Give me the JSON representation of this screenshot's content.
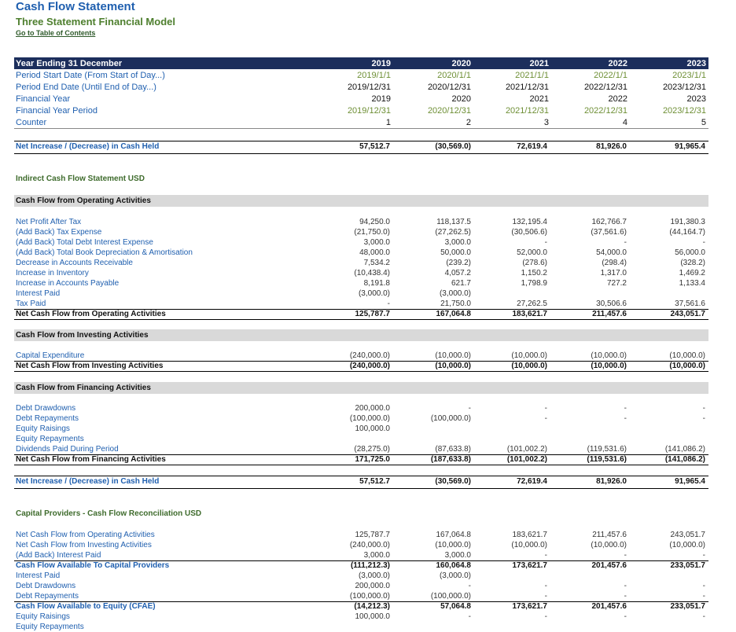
{
  "title": "Cash Flow Statement",
  "subtitle": "Three Statement Financial Model",
  "toc_link": "Go to Table of Contents",
  "header": {
    "rows": [
      {
        "label": "Year Ending 31 December",
        "values": [
          "2019",
          "2020",
          "2021",
          "2022",
          "2023"
        ]
      },
      {
        "label": "Period Start Date (From Start of Day...)",
        "values": [
          "2019/1/1",
          "2020/1/1",
          "2021/1/1",
          "2022/1/1",
          "2023/1/1"
        ]
      },
      {
        "label": "Period End Date (Until End of Day...)",
        "values": [
          "2019/12/31",
          "2020/12/31",
          "2021/12/31",
          "2022/12/31",
          "2023/12/31"
        ]
      },
      {
        "label": "Financial Year",
        "values": [
          "2019",
          "2020",
          "2021",
          "2022",
          "2023"
        ]
      },
      {
        "label": "Financial Year Period",
        "values": [
          "2019/12/31",
          "2020/12/31",
          "2021/12/31",
          "2022/12/31",
          "2023/12/31"
        ]
      },
      {
        "label": "Counter",
        "values": [
          "1",
          "2",
          "3",
          "4",
          "5"
        ]
      }
    ]
  },
  "net_increase_top": {
    "label": "Net Increase / (Decrease) in Cash Held",
    "values": [
      "57,512.7",
      "(30,569.0)",
      "72,619.4",
      "81,926.0",
      "91,965.4"
    ]
  },
  "indirect_title": "Indirect Cash Flow Statement  USD",
  "operating": {
    "band": "Cash Flow from Operating Activities",
    "rows": [
      {
        "label": "Net Profit After Tax",
        "values": [
          "94,250.0",
          "118,137.5",
          "132,195.4",
          "162,766.7",
          "191,380.3"
        ]
      },
      {
        "label": "(Add Back) Tax Expense",
        "values": [
          "(21,750.0)",
          "(27,262.5)",
          "(30,506.6)",
          "(37,561.6)",
          "(44,164.7)"
        ]
      },
      {
        "label": "(Add Back) Total Debt Interest Expense",
        "values": [
          "3,000.0",
          "3,000.0",
          "-",
          "-",
          "-"
        ]
      },
      {
        "label": "(Add Back) Total Book Depreciation & Amortisation",
        "values": [
          "48,000.0",
          "50,000.0",
          "52,000.0",
          "54,000.0",
          "56,000.0"
        ]
      },
      {
        "label": "Decrease in Accounts Receivable",
        "values": [
          "7,534.2",
          "(239.2)",
          "(278.6)",
          "(298.4)",
          "(328.2)"
        ]
      },
      {
        "label": "Increase in Inventory",
        "values": [
          "(10,438.4)",
          "4,057.2",
          "1,150.2",
          "1,317.0",
          "1,469.2"
        ]
      },
      {
        "label": "Increase in Accounts Payable",
        "values": [
          "8,191.8",
          "621.7",
          "1,798.9",
          "727.2",
          "1,133.4"
        ]
      },
      {
        "label": "Interest Paid",
        "values": [
          "(3,000.0)",
          "(3,000.0)",
          "",
          "",
          ""
        ]
      },
      {
        "label": "Tax Paid",
        "values": [
          "-",
          "21,750.0",
          "27,262.5",
          "30,506.6",
          "37,561.6"
        ]
      }
    ],
    "total": {
      "label": "Net Cash Flow from Operating Activities",
      "values": [
        "125,787.7",
        "167,064.8",
        "183,621.7",
        "211,457.6",
        "243,051.7"
      ]
    }
  },
  "investing": {
    "band": "Cash Flow from Investing Activities",
    "rows": [
      {
        "label": "Capital Expenditure",
        "values": [
          "(240,000.0)",
          "(10,000.0)",
          "(10,000.0)",
          "(10,000.0)",
          "(10,000.0)"
        ]
      }
    ],
    "total": {
      "label": "Net Cash Flow from Investing Activities",
      "values": [
        "(240,000.0)",
        "(10,000.0)",
        "(10,000.0)",
        "(10,000.0)",
        "(10,000.0)"
      ]
    }
  },
  "financing": {
    "band": "Cash Flow from Financing Activities",
    "rows": [
      {
        "label": "Debt Drawdowns",
        "values": [
          "200,000.0",
          "-",
          "-",
          "-",
          "-"
        ]
      },
      {
        "label": "Debt Repayments",
        "values": [
          "(100,000.0)",
          "(100,000.0)",
          "-",
          "-",
          "-"
        ]
      },
      {
        "label": "Equity Raisings",
        "values": [
          "100,000.0",
          "",
          "",
          "",
          ""
        ]
      },
      {
        "label": "Equity Repayments",
        "values": [
          "",
          "",
          "",
          "",
          ""
        ]
      },
      {
        "label": "Dividends Paid During Period",
        "values": [
          "(28,275.0)",
          "(87,633.8)",
          "(101,002.2)",
          "(119,531.6)",
          "(141,086.2)"
        ]
      }
    ],
    "total": {
      "label": "Net Cash Flow from Financing Activities",
      "values": [
        "171,725.0",
        "(187,633.8)",
        "(101,002.2)",
        "(119,531.6)",
        "(141,086.2)"
      ]
    }
  },
  "net_increase_bottom": {
    "label": "Net Increase / (Decrease) in Cash Held",
    "values": [
      "57,512.7",
      "(30,569.0)",
      "72,619.4",
      "81,926.0",
      "91,965.4"
    ]
  },
  "capital_title": "Capital Providers - Cash Flow Reconciliation  USD",
  "capital": {
    "rows": [
      {
        "label": "Net Cash Flow from Operating Activities",
        "values": [
          "125,787.7",
          "167,064.8",
          "183,621.7",
          "211,457.6",
          "243,051.7"
        ],
        "style": ""
      },
      {
        "label": "Net Cash Flow from Investing Activities",
        "values": [
          "(240,000.0)",
          "(10,000.0)",
          "(10,000.0)",
          "(10,000.0)",
          "(10,000.0)"
        ],
        "style": ""
      },
      {
        "label": "(Add Back) Interest Paid",
        "values": [
          "3,000.0",
          "3,000.0",
          "-",
          "-",
          "-"
        ],
        "style": ""
      },
      {
        "label": "Cash Flow Available To Capital Providers",
        "values": [
          "(111,212.3)",
          "160,064.8",
          "173,621.7",
          "201,457.6",
          "233,051.7"
        ],
        "style": "tot2"
      },
      {
        "label": "Interest Paid",
        "values": [
          "(3,000.0)",
          "(3,000.0)",
          "",
          "",
          ""
        ],
        "style": ""
      },
      {
        "label": "Debt Drawdowns",
        "values": [
          "200,000.0",
          "-",
          "-",
          "-",
          "-"
        ],
        "style": ""
      },
      {
        "label": "Debt Repayments",
        "values": [
          "(100,000.0)",
          "(100,000.0)",
          "-",
          "-",
          "-"
        ],
        "style": ""
      },
      {
        "label": "Cash Flow Available to Equity (CFAE)",
        "values": [
          "(14,212.3)",
          "57,064.8",
          "173,621.7",
          "201,457.6",
          "233,051.7"
        ],
        "style": "tot2"
      },
      {
        "label": "Equity Raisings",
        "values": [
          "100,000.0",
          "-",
          "-",
          "-",
          "-"
        ],
        "style": ""
      },
      {
        "label": "Equity Repayments",
        "values": [
          "",
          "",
          "",
          "",
          ""
        ],
        "style": ""
      }
    ]
  }
}
